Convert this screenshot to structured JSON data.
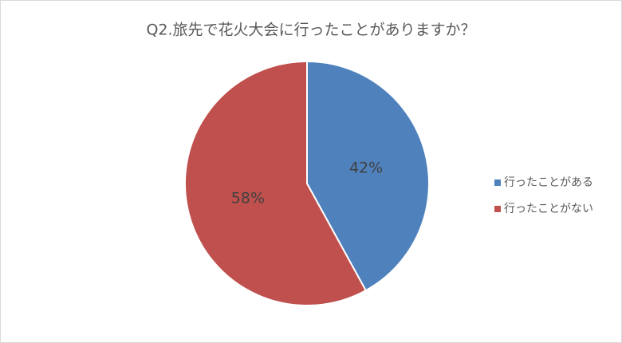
{
  "chart_data": {
    "type": "pie",
    "title": "Q2.旅先で花火大会に行ったことがありますか？",
    "categories": [
      "行ったことがある",
      "行ったことがない"
    ],
    "values": [
      42,
      58
    ],
    "value_labels": [
      "42%",
      "58%"
    ],
    "colors": [
      "#4f81bd",
      "#c0504d"
    ],
    "legend": "right"
  }
}
